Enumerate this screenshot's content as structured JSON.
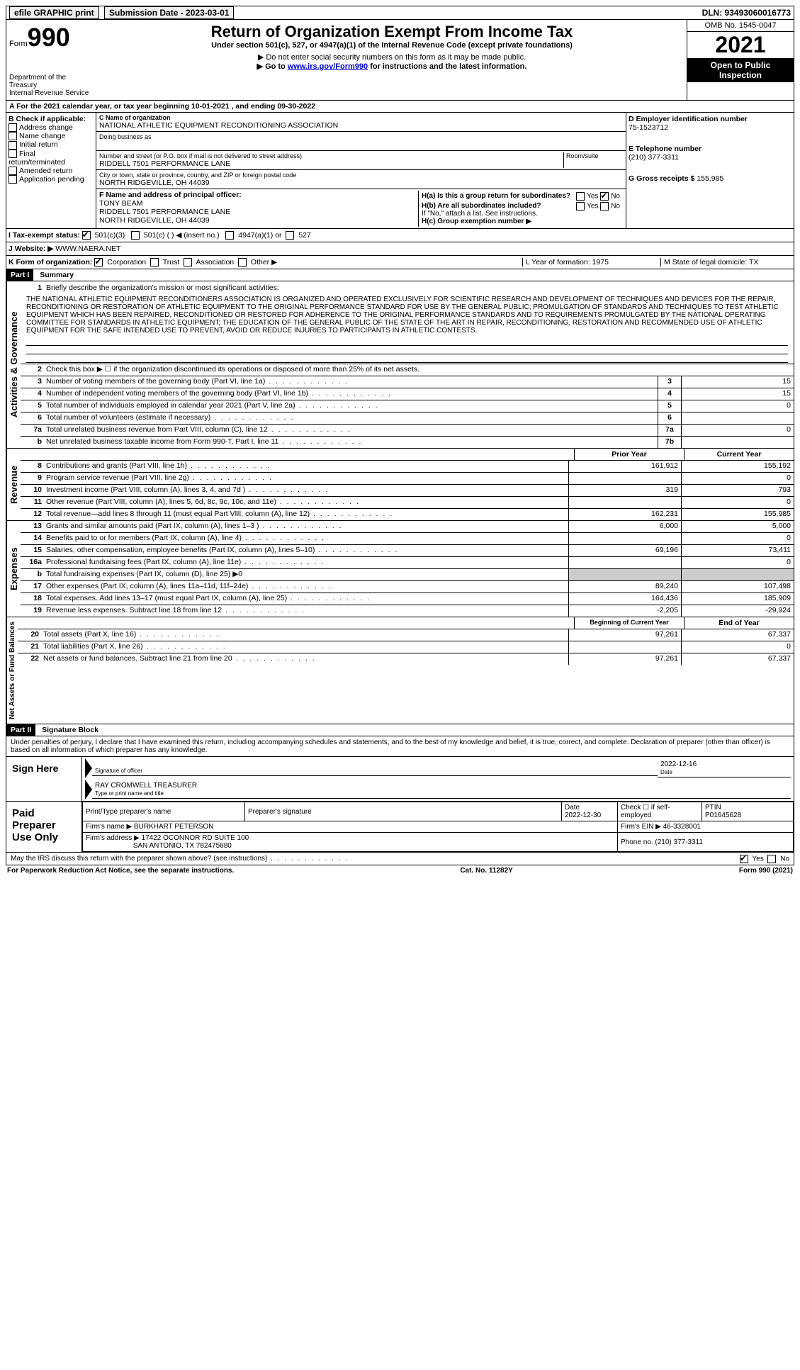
{
  "topbar": {
    "efile": "efile GRAPHIC print",
    "submission": "Submission Date - 2023-03-01",
    "dln": "DLN: 93493060016773"
  },
  "header": {
    "form_prefix": "Form",
    "form_no": "990",
    "dept": "Department of the Treasury",
    "irs": "Internal Revenue Service",
    "title": "Return of Organization Exempt From Income Tax",
    "subtitle": "Under section 501(c), 527, or 4947(a)(1) of the Internal Revenue Code (except private foundations)",
    "note1": "▶ Do not enter social security numbers on this form as it may be made public.",
    "note2_a": "▶ Go to ",
    "note2_link": "www.irs.gov/Form990",
    "note2_b": " for instructions and the latest information.",
    "omb": "OMB No. 1545-0047",
    "year": "2021",
    "open": "Open to Public Inspection"
  },
  "row_a": "A For the 2021 calendar year, or tax year beginning 10-01-2021  , and ending 09-30-2022",
  "box_b": {
    "title": "B Check if applicable:",
    "items": [
      "Address change",
      "Name change",
      "Initial return",
      "Final return/terminated",
      "Amended return",
      "Application pending"
    ]
  },
  "box_c": {
    "label_name": "C Name of organization",
    "name": "NATIONAL ATHLETIC EQUIPMENT RECONDITIONING ASSOCIATION",
    "dba_label": "Doing business as",
    "addr_label": "Number and street (or P.O. box if mail is not delivered to street address)",
    "room_label": "Room/suite",
    "addr": "RIDDELL 7501 PERFORMANCE LANE",
    "city_label": "City or town, state or province, country, and ZIP or foreign postal code",
    "city": "NORTH RIDGEVILLE, OH  44039"
  },
  "box_d": {
    "label": "D Employer identification number",
    "val": "75-1523712"
  },
  "box_e": {
    "label": "E Telephone number",
    "val": "(210) 377-3311"
  },
  "box_g": {
    "label": "G Gross receipts $",
    "val": "155,985"
  },
  "box_f": {
    "label": "F Name and address of principal officer:",
    "name": "TONY BEAM",
    "addr1": "RIDDELL 7501 PERFORMANCE LANE",
    "addr2": "NORTH RIDGEVILLE, OH  44039"
  },
  "box_h": {
    "ha": "H(a)  Is this a group return for subordinates?",
    "hb": "H(b)  Are all subordinates included?",
    "hb_note": "If \"No,\" attach a list. See instructions.",
    "hc": "H(c)  Group exemption number ▶"
  },
  "row_i": {
    "label": "I  Tax-exempt status:",
    "o1": "501(c)(3)",
    "o2": "501(c) (  ) ◀ (insert no.)",
    "o3": "4947(a)(1) or",
    "o4": "527"
  },
  "row_j": {
    "label": "J  Website: ▶",
    "val": "WWW.NAERA.NET"
  },
  "row_k": {
    "label": "K Form of organization:",
    "o1": "Corporation",
    "o2": "Trust",
    "o3": "Association",
    "o4": "Other ▶",
    "l": "L Year of formation: 1975",
    "m": "M State of legal domicile: TX"
  },
  "part1": {
    "hdr": "Part I",
    "title": "Summary",
    "side1": "Activities & Governance",
    "side2": "Revenue",
    "side3": "Expenses",
    "side4": "Net Assets or Fund Balances",
    "l1_label": "Briefly describe the organization's mission or most significant activities:",
    "mission": "THE NATIONAL ATHLETIC EQUIPMENT RECONDITIONERS ASSOCIATION IS ORGANIZED AND OPERATED EXCLUSIVELY FOR SCIENTIFIC RESEARCH AND DEVELOPMENT OF TECHNIQUES AND DEVICES FOR THE REPAIR, RECONDITIONING OR RESTORATION OF ATHLETIC EQUIPMENT TO THE ORIGINAL PERFORMANCE STANDARD FOR USE BY THE GENERAL PUBLIC; PROMULGATION OF STANDARDS AND TECHNIQUES TO TEST ATHLETIC EQUIPMENT WHICH HAS BEEN REPAIRED, RECONDITIONED OR RESTORED FOR ADHERENCE TO THE ORIGINAL PERFORMANCE STANDARDS AND TO REQUIREMENTS PROMULGATED BY THE NATIONAL OPERATING COMMITTEE FOR STANDARDS IN ATHLETIC EQUIPMENT; THE EDUCATION OF THE GENERAL PUBLIC OF THE STATE OF THE ART IN REPAIR, RECONDITIONING, RESTORATION AND RECOMMENDED USE OF ATHLETIC EQUIPMENT FOR THE SAFE INTENDED USE TO PREVENT, AVOID OR REDUCE INJURIES TO PARTICIPANTS IN ATHLETIC CONTESTS.",
    "l2": "Check this box ▶ ☐ if the organization discontinued its operations or disposed of more than 25% of its net assets.",
    "lines_gov": [
      {
        "n": "3",
        "t": "Number of voting members of the governing body (Part VI, line 1a)",
        "b": "3",
        "v": "15"
      },
      {
        "n": "4",
        "t": "Number of independent voting members of the governing body (Part VI, line 1b)",
        "b": "4",
        "v": "15"
      },
      {
        "n": "5",
        "t": "Total number of individuals employed in calendar year 2021 (Part V, line 2a)",
        "b": "5",
        "v": "0"
      },
      {
        "n": "6",
        "t": "Total number of volunteers (estimate if necessary)",
        "b": "6",
        "v": ""
      },
      {
        "n": "7a",
        "t": "Total unrelated business revenue from Part VIII, column (C), line 12",
        "b": "7a",
        "v": "0"
      },
      {
        "n": "b",
        "t": "Net unrelated business taxable income from Form 990-T, Part I, line 11",
        "b": "7b",
        "v": ""
      }
    ],
    "col_prior": "Prior Year",
    "col_current": "Current Year",
    "lines_rev": [
      {
        "n": "8",
        "t": "Contributions and grants (Part VIII, line 1h)",
        "p": "161,912",
        "c": "155,192"
      },
      {
        "n": "9",
        "t": "Program service revenue (Part VIII, line 2g)",
        "p": "",
        "c": "0"
      },
      {
        "n": "10",
        "t": "Investment income (Part VIII, column (A), lines 3, 4, and 7d )",
        "p": "319",
        "c": "793"
      },
      {
        "n": "11",
        "t": "Other revenue (Part VIII, column (A), lines 5, 6d, 8c, 9c, 10c, and 11e)",
        "p": "",
        "c": "0"
      },
      {
        "n": "12",
        "t": "Total revenue—add lines 8 through 11 (must equal Part VIII, column (A), line 12)",
        "p": "162,231",
        "c": "155,985"
      }
    ],
    "lines_exp": [
      {
        "n": "13",
        "t": "Grants and similar amounts paid (Part IX, column (A), lines 1–3 )",
        "p": "6,000",
        "c": "5,000"
      },
      {
        "n": "14",
        "t": "Benefits paid to or for members (Part IX, column (A), line 4)",
        "p": "",
        "c": "0"
      },
      {
        "n": "15",
        "t": "Salaries, other compensation, employee benefits (Part IX, column (A), lines 5–10)",
        "p": "69,196",
        "c": "73,411"
      },
      {
        "n": "16a",
        "t": "Professional fundraising fees (Part IX, column (A), line 11e)",
        "p": "",
        "c": "0"
      },
      {
        "n": "b",
        "t": "Total fundraising expenses (Part IX, column (D), line 25) ▶0",
        "p": "shade",
        "c": "shade"
      },
      {
        "n": "17",
        "t": "Other expenses (Part IX, column (A), lines 11a–11d, 11f–24e)",
        "p": "89,240",
        "c": "107,498"
      },
      {
        "n": "18",
        "t": "Total expenses. Add lines 13–17 (must equal Part IX, column (A), line 25)",
        "p": "164,436",
        "c": "185,909"
      },
      {
        "n": "19",
        "t": "Revenue less expenses. Subtract line 18 from line 12",
        "p": "-2,205",
        "c": "-29,924"
      }
    ],
    "col_begin": "Beginning of Current Year",
    "col_end": "End of Year",
    "lines_net": [
      {
        "n": "20",
        "t": "Total assets (Part X, line 16)",
        "p": "97,261",
        "c": "67,337"
      },
      {
        "n": "21",
        "t": "Total liabilities (Part X, line 26)",
        "p": "",
        "c": "0"
      },
      {
        "n": "22",
        "t": "Net assets or fund balances. Subtract line 21 from line 20",
        "p": "97,261",
        "c": "67,337"
      }
    ]
  },
  "part2": {
    "hdr": "Part II",
    "title": "Signature Block",
    "decl": "Under penalties of perjury, I declare that I have examined this return, including accompanying schedules and statements, and to the best of my knowledge and belief, it is true, correct, and complete. Declaration of preparer (other than officer) is based on all information of which preparer has any knowledge.",
    "sign_here": "Sign Here",
    "sig_of_officer": "Signature of officer",
    "date": "Date",
    "date_val": "2022-12-16",
    "officer": "RAY CROMWELL  TREASURER",
    "type_name": "Type or print name and title",
    "paid": "Paid Preparer Use Only",
    "prep_name_lbl": "Print/Type preparer's name",
    "prep_sig_lbl": "Preparer's signature",
    "prep_date_lbl": "Date",
    "prep_date": "2022-12-30",
    "self_emp": "Check ☐ if self-employed",
    "ptin_lbl": "PTIN",
    "ptin": "P01645628",
    "firm_name_lbl": "Firm's name   ▶",
    "firm_name": "BURKHART PETERSON",
    "firm_ein_lbl": "Firm's EIN ▶",
    "firm_ein": "46-3328001",
    "firm_addr_lbl": "Firm's address ▶",
    "firm_addr": "17422 OCONNOR RD SUITE 100",
    "firm_city": "SAN ANTONIO, TX  782475680",
    "phone_lbl": "Phone no.",
    "phone": "(210) 377-3311",
    "discuss": "May the IRS discuss this return with the preparer shown above? (see instructions)",
    "yes": "Yes",
    "no": "No"
  },
  "footer": {
    "left": "For Paperwork Reduction Act Notice, see the separate instructions.",
    "mid": "Cat. No. 11282Y",
    "right": "Form 990 (2021)"
  }
}
